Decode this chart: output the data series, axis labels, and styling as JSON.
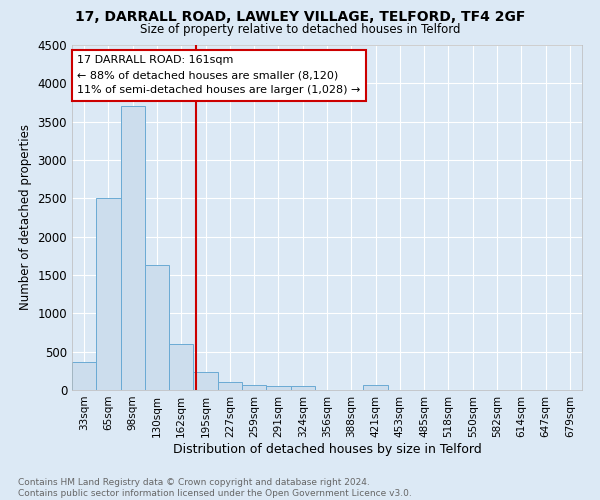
{
  "title1": "17, DARRALL ROAD, LAWLEY VILLAGE, TELFORD, TF4 2GF",
  "title2": "Size of property relative to detached houses in Telford",
  "xlabel": "Distribution of detached houses by size in Telford",
  "ylabel": "Number of detached properties",
  "bar_color": "#ccdded",
  "bar_edge_color": "#6aaad4",
  "background_color": "#dce9f5",
  "grid_color": "#ffffff",
  "categories": [
    "33sqm",
    "65sqm",
    "98sqm",
    "130sqm",
    "162sqm",
    "195sqm",
    "227sqm",
    "259sqm",
    "291sqm",
    "324sqm",
    "356sqm",
    "388sqm",
    "421sqm",
    "453sqm",
    "485sqm",
    "518sqm",
    "550sqm",
    "582sqm",
    "614sqm",
    "647sqm",
    "679sqm"
  ],
  "values": [
    370,
    2500,
    3700,
    1630,
    600,
    240,
    100,
    60,
    55,
    55,
    0,
    0,
    60,
    0,
    0,
    0,
    0,
    0,
    0,
    0,
    0
  ],
  "ylim": [
    0,
    4500
  ],
  "yticks": [
    0,
    500,
    1000,
    1500,
    2000,
    2500,
    3000,
    3500,
    4000,
    4500
  ],
  "vline_x": 4.6,
  "vline_color": "#cc0000",
  "annotation_text": "17 DARRALL ROAD: 161sqm\n← 88% of detached houses are smaller (8,120)\n11% of semi-detached houses are larger (1,028) →",
  "annotation_box_color": "#ffffff",
  "annotation_box_edge": "#cc0000",
  "footnote": "Contains HM Land Registry data © Crown copyright and database right 2024.\nContains public sector information licensed under the Open Government Licence v3.0."
}
